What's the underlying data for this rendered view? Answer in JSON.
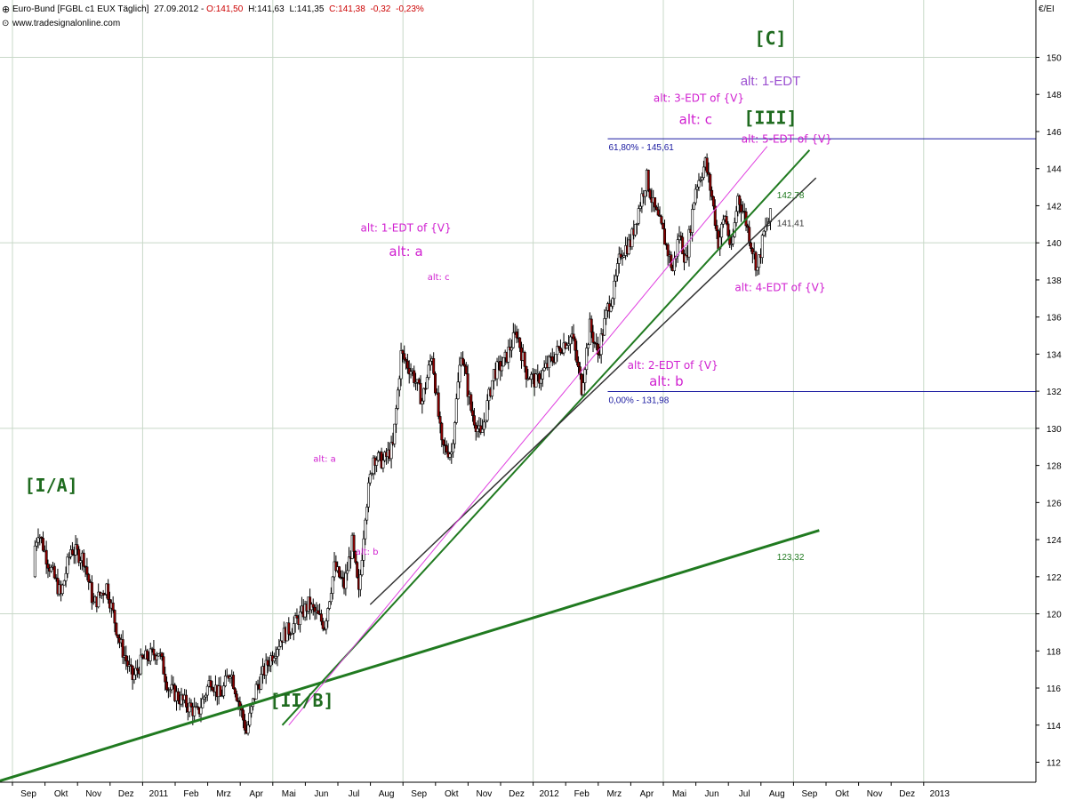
{
  "header": {
    "instrument": "Euro-Bund [FGBL c1 EUX  Täglich]",
    "date": "27.09.2012",
    "ohlc_prefix": " - ",
    "open": "O:141,50",
    "high": "H:141,63",
    "low": "L:141,35",
    "close": "C:141,38",
    "change": "-0,32",
    "change_pct": "-0,23%",
    "website": "www.tradesignalonline.com",
    "unit_label": "€/EI"
  },
  "colors": {
    "up_candle": "#ffffff",
    "down_candle": "#8b0000",
    "wick": "#000000",
    "trend_green": "#207a20",
    "trend_black": "#333333",
    "trend_magenta": "#e040e0",
    "fib_blue": "#1a1aa0",
    "wave_green": "#1f6b1f",
    "alt_magenta": "#d020d0",
    "alt_purple": "#9b4fd0",
    "grid": "#c8d8c8",
    "change_red": "#cc0000"
  },
  "chart_data": {
    "type": "candlestick",
    "title": "Euro-Bund [FGBL c1 EUX  Täglich]",
    "ylabel": "€/EI",
    "ylim": [
      111,
      152
    ],
    "y_ticks": [
      112,
      114,
      116,
      118,
      120,
      122,
      124,
      126,
      128,
      130,
      132,
      134,
      136,
      138,
      140,
      142,
      144,
      146,
      148,
      150
    ],
    "x_months": [
      "Sep",
      "Okt",
      "Nov",
      "Dez",
      "2011",
      "Feb",
      "Mrz",
      "Apr",
      "Mai",
      "Jun",
      "Jul",
      "Aug",
      "Sep",
      "Okt",
      "Nov",
      "Dez",
      "2012",
      "Feb",
      "Mrz",
      "Apr",
      "Mai",
      "Jun",
      "Jul",
      "Aug",
      "Sep",
      "Okt",
      "Nov",
      "Dez",
      "2013"
    ],
    "price_path": [
      [
        0,
        122
      ],
      [
        0.3,
        124.5
      ],
      [
        0.6,
        122.8
      ],
      [
        1.0,
        121
      ],
      [
        1.3,
        123.5
      ],
      [
        1.7,
        123
      ],
      [
        2.0,
        120.5
      ],
      [
        2.4,
        121.5
      ],
      [
        2.8,
        118.5
      ],
      [
        3.2,
        116.5
      ],
      [
        3.5,
        117.5
      ],
      [
        4.0,
        118.0
      ],
      [
        4.3,
        116.0
      ],
      [
        4.8,
        115.2
      ],
      [
        5.2,
        114.6
      ],
      [
        5.6,
        116.5
      ],
      [
        5.9,
        115.5
      ],
      [
        6.2,
        117
      ],
      [
        6.5,
        115
      ],
      [
        6.7,
        113.6
      ],
      [
        7.0,
        116.0
      ],
      [
        7.4,
        117.5
      ],
      [
        7.8,
        118.8
      ],
      [
        8.2,
        119.5
      ],
      [
        8.6,
        120.5
      ],
      [
        9.1,
        119.4
      ],
      [
        9.4,
        122.5
      ],
      [
        9.7,
        121.5
      ],
      [
        9.95,
        123.8
      ],
      [
        10.15,
        121
      ],
      [
        10.35,
        125.5
      ],
      [
        10.6,
        128.5
      ],
      [
        10.9,
        128.2
      ],
      [
        11.2,
        129
      ],
      [
        11.45,
        134
      ],
      [
        11.8,
        133
      ],
      [
        12.1,
        131.5
      ],
      [
        12.4,
        134
      ],
      [
        12.7,
        129
      ],
      [
        13.0,
        128.7
      ],
      [
        13.3,
        134.2
      ],
      [
        13.6,
        131
      ],
      [
        13.9,
        129.5
      ],
      [
        14.3,
        133
      ],
      [
        14.6,
        133.5
      ],
      [
        15.0,
        135.2
      ],
      [
        15.3,
        133
      ],
      [
        15.6,
        132.5
      ],
      [
        16.0,
        133.5
      ],
      [
        16.4,
        134.5
      ],
      [
        16.7,
        135.0
      ],
      [
        17.0,
        132.2
      ],
      [
        17.25,
        135.5
      ],
      [
        17.5,
        134
      ],
      [
        17.8,
        136.5
      ],
      [
        18.0,
        137.5
      ],
      [
        18.2,
        139.5
      ],
      [
        18.5,
        140
      ],
      [
        18.8,
        142.2
      ],
      [
        19.0,
        143.5
      ],
      [
        19.2,
        142
      ],
      [
        19.5,
        140.5
      ],
      [
        19.8,
        138.5
      ],
      [
        20.0,
        140.5
      ],
      [
        20.2,
        139
      ],
      [
        20.5,
        143
      ],
      [
        20.8,
        144.3
      ],
      [
        21.0,
        142.5
      ],
      [
        21.2,
        140
      ],
      [
        21.4,
        141.5
      ],
      [
        21.6,
        139.5
      ],
      [
        21.8,
        142.5
      ],
      [
        22.0,
        141.5
      ],
      [
        22.2,
        140
      ],
      [
        22.4,
        138.6
      ],
      [
        22.6,
        140.5
      ],
      [
        22.8,
        141.4
      ]
    ],
    "trendlines": [
      {
        "name": "green-long",
        "color": "green",
        "from": [
          -1.8,
          110.5
        ],
        "to": [
          24.3,
          124.5
        ],
        "width": 3
      },
      {
        "name": "green-mid",
        "color": "green",
        "from": [
          7.8,
          114.0
        ],
        "to": [
          24.0,
          145.0
        ],
        "width": 2
      },
      {
        "name": "black",
        "color": "black",
        "from": [
          10.5,
          120.5
        ],
        "to": [
          24.2,
          143.5
        ],
        "width": 1.5
      },
      {
        "name": "magenta",
        "color": "magenta",
        "from": [
          8.0,
          114.0
        ],
        "to": [
          22.7,
          145.2
        ],
        "width": 1
      }
    ],
    "fib_levels": [
      {
        "label": "61,80% - 145,61",
        "value": 145.61,
        "from_x": 17.8
      },
      {
        "label": "0,00% - 131,98",
        "value": 131.98,
        "from_x": 17.8
      }
    ],
    "value_labels": [
      {
        "text": "142,78",
        "x": 23.0,
        "y": 142.4,
        "color": "green"
      },
      {
        "text": "141,41",
        "x": 23.0,
        "y": 140.9,
        "color": "black"
      },
      {
        "text": "123,32",
        "x": 23.0,
        "y": 122.9,
        "color": "green"
      }
    ],
    "wave_labels": [
      {
        "text": "[C]",
        "x": 22.8,
        "y": 150.7,
        "color": "green",
        "size": 20
      },
      {
        "text": "alt: 1-EDT",
        "x": 22.8,
        "y": 148.5,
        "color": "purple",
        "size": 15
      },
      {
        "text": "[III]",
        "x": 22.8,
        "y": 146.4,
        "color": "green",
        "size": 20
      },
      {
        "text": "[I/A]",
        "x": 0.7,
        "y": 126.6,
        "color": "green",
        "size": 20
      },
      {
        "text": "[II/B]",
        "x": 8.4,
        "y": 115.0,
        "color": "green",
        "size": 20
      }
    ],
    "annotations": [
      {
        "text": "alt: 3-EDT of {V}",
        "x": 20.6,
        "y": 147.6,
        "size": 12
      },
      {
        "text": "alt: c",
        "x": 20.5,
        "y": 146.4,
        "size": 15
      },
      {
        "text": "alt: 5-EDT of {V}",
        "x": 23.3,
        "y": 145.4,
        "size": 12
      },
      {
        "text": "alt: 1-EDT of {V}",
        "x": 11.6,
        "y": 140.6,
        "size": 12
      },
      {
        "text": "alt: a",
        "x": 11.6,
        "y": 139.3,
        "size": 15
      },
      {
        "text": "alt: c",
        "x": 12.6,
        "y": 138.0,
        "size": 10
      },
      {
        "text": "alt: 4-EDT of {V}",
        "x": 23.1,
        "y": 137.4,
        "size": 12
      },
      {
        "text": "alt: 2-EDT of {V}",
        "x": 19.8,
        "y": 133.2,
        "size": 12
      },
      {
        "text": "alt: b",
        "x": 19.6,
        "y": 132.3,
        "size": 15
      },
      {
        "text": "alt: a",
        "x": 9.1,
        "y": 128.2,
        "size": 10
      },
      {
        "text": "alt: b",
        "x": 10.4,
        "y": 123.2,
        "size": 10
      }
    ],
    "grid": true,
    "legend": "none"
  }
}
